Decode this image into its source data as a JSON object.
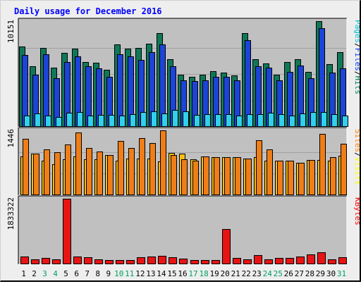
{
  "chart_data": {
    "type": "bar",
    "title": "Daily usage for December 2016",
    "days": [
      "1",
      "2",
      "3",
      "4",
      "5",
      "6",
      "7",
      "8",
      "9",
      "10",
      "11",
      "12",
      "13",
      "14",
      "15",
      "16",
      "17",
      "18",
      "19",
      "20",
      "21",
      "22",
      "23",
      "24",
      "25",
      "26",
      "27",
      "28",
      "29",
      "30",
      "31"
    ],
    "weekend_days": [
      "3",
      "4",
      "10",
      "11",
      "17",
      "18",
      "24",
      "25",
      "31"
    ],
    "panels": [
      {
        "id": "pages-files-hits",
        "max_label": "10151",
        "ymax": 10151,
        "legend": [
          {
            "text": "Pages",
            "color": "#00c0d0"
          },
          {
            "text": "/",
            "color": "#000000"
          },
          {
            "text": "Files",
            "color": "#0040ff"
          },
          {
            "text": "/",
            "color": "#000000"
          },
          {
            "text": "Hits",
            "color": "#008060"
          }
        ],
        "series": [
          {
            "name": "Hits",
            "color": "#107858",
            "values": [
              7700,
              5800,
              7550,
              5700,
              7100,
              7500,
              6200,
              6160,
              5500,
              7900,
              7500,
              7550,
              8000,
              9000,
              6500,
              5000,
              4830,
              5000,
              5330,
              5200,
              4950,
              9000,
              6500,
              6100,
              5000,
              6200,
              6500,
              5300,
              10151,
              6000,
              7200
            ]
          },
          {
            "name": "Files",
            "color": "#1c44d8",
            "values": [
              6900,
              5000,
              7000,
              4700,
              6200,
              6800,
              5800,
              5600,
              4800,
              7000,
              6800,
              6400,
              7200,
              7900,
              5800,
              4500,
              4380,
              4500,
              4800,
              4800,
              4500,
              8300,
              5800,
              5700,
              4500,
              5300,
              5900,
              4700,
              9500,
              5200,
              5600
            ]
          },
          {
            "name": "Pages",
            "color": "#32d0ec",
            "values": [
              1100,
              1300,
              1100,
              950,
              1350,
              1400,
              1100,
              1170,
              1150,
              1100,
              1200,
              1400,
              1500,
              1300,
              1600,
              1500,
              1130,
              1250,
              1250,
              1250,
              1100,
              1250,
              1200,
              1360,
              1200,
              1110,
              1300,
              1400,
              1440,
              1250,
              1070
            ]
          }
        ]
      },
      {
        "id": "sites-visits",
        "max_label": "1446",
        "ymax": 1446,
        "legend": [
          {
            "text": "Sites",
            "color": "#ff8000"
          },
          {
            "text": "/",
            "color": "#000000"
          },
          {
            "text": "Visits",
            "color": "#ffff00"
          }
        ],
        "series": [
          {
            "name": "Visits",
            "color": "#f8c010",
            "values": [
              870,
              922,
              770,
              690,
              809,
              859,
              809,
              809,
              895,
              770,
              820,
              810,
              820,
              760,
              940,
              923,
              799,
              859,
              850,
              850,
              850,
              820,
              850,
              770,
              770,
              770,
              730,
              780,
              780,
              770,
              880
            ]
          },
          {
            "name": "Sites",
            "color": "#f07e18",
            "values": [
              1250,
              930,
              1020,
              960,
              1130,
              1400,
              1060,
              980,
              900,
              1210,
              1050,
              1280,
              1160,
              1446,
              900,
              800,
              770,
              860,
              850,
              850,
              850,
              820,
              1230,
              1020,
              770,
              770,
              730,
              780,
              1370,
              850,
              1150
            ]
          }
        ]
      },
      {
        "id": "kbytes",
        "max_label": "1833322",
        "ymax": 1833322,
        "legend": [
          {
            "text": "KBytes",
            "color": "#ff0000"
          }
        ],
        "series": [
          {
            "name": "KBytes",
            "color": "#e81414",
            "values": [
              210000,
              140000,
              170000,
              140000,
              1833322,
              220000,
              200000,
              140000,
              110000,
              110000,
              120000,
              190000,
              220000,
              240000,
              190000,
              150000,
              110000,
              110000,
              110000,
              976000,
              170000,
              140000,
              260000,
              140000,
              180000,
              180000,
              210000,
              280000,
              330000,
              140000,
              200000
            ]
          }
        ]
      }
    ]
  }
}
